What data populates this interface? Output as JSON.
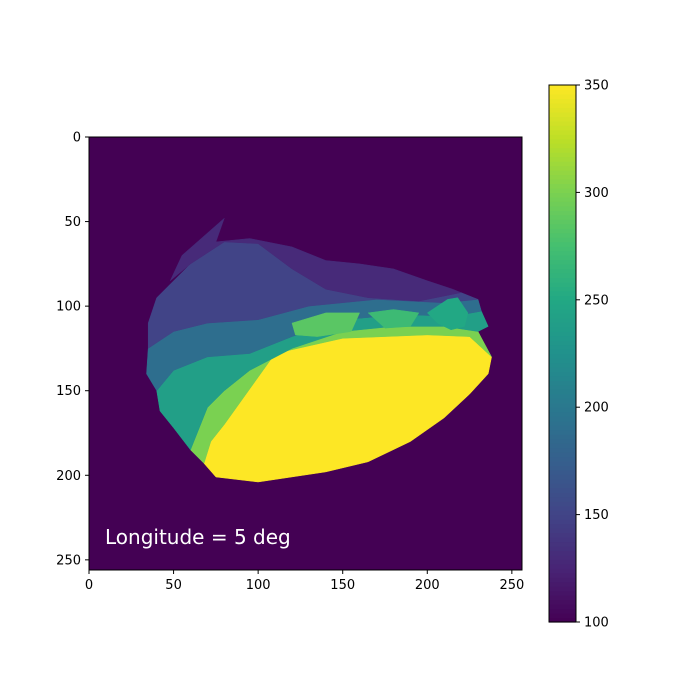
{
  "chart_data": {
    "type": "heatmap",
    "title": "",
    "xlabel": "",
    "ylabel": "",
    "xlim": [
      0,
      256
    ],
    "ylim": [
      256,
      0
    ],
    "x_ticks": [
      0,
      50,
      100,
      150,
      200,
      250
    ],
    "y_ticks": [
      0,
      50,
      100,
      150,
      200,
      250
    ],
    "background_value": 100,
    "colorbar": {
      "colormap": "viridis",
      "range": [
        100,
        350
      ],
      "ticks": [
        100,
        150,
        200,
        250,
        300,
        350
      ]
    },
    "annotation": "Longitude = 5 deg",
    "regions": [
      {
        "value": 350,
        "points": [
          [
            80,
            170
          ],
          [
            110,
            128
          ],
          [
            150,
            119
          ],
          [
            200,
            117
          ],
          [
            225,
            118
          ],
          [
            238,
            130
          ],
          [
            236,
            140
          ],
          [
            225,
            152
          ],
          [
            210,
            166
          ],
          [
            190,
            180
          ],
          [
            165,
            192
          ],
          [
            140,
            198
          ],
          [
            100,
            204
          ],
          [
            75,
            201
          ],
          [
            68,
            193
          ],
          [
            72,
            180
          ]
        ]
      },
      {
        "value": 300,
        "points": [
          [
            60,
            185
          ],
          [
            70,
            160
          ],
          [
            80,
            150
          ],
          [
            95,
            138
          ],
          [
            120,
            125
          ],
          [
            150,
            115
          ],
          [
            180,
            112
          ],
          [
            210,
            112
          ],
          [
            230,
            115
          ],
          [
            238,
            130
          ],
          [
            225,
            118
          ],
          [
            200,
            117
          ],
          [
            150,
            119
          ],
          [
            110,
            128
          ],
          [
            80,
            170
          ],
          [
            72,
            180
          ],
          [
            68,
            193
          ]
        ]
      },
      {
        "value": 240,
        "points": [
          [
            40,
            150
          ],
          [
            50,
            138
          ],
          [
            70,
            130
          ],
          [
            95,
            128
          ],
          [
            120,
            118
          ],
          [
            150,
            108
          ],
          [
            185,
            105
          ],
          [
            215,
            106
          ],
          [
            232,
            103
          ],
          [
            236,
            112
          ],
          [
            230,
            115
          ],
          [
            210,
            112
          ],
          [
            180,
            112
          ],
          [
            150,
            115
          ],
          [
            120,
            125
          ],
          [
            95,
            138
          ],
          [
            80,
            150
          ],
          [
            70,
            160
          ],
          [
            60,
            185
          ],
          [
            50,
            172
          ],
          [
            42,
            162
          ]
        ]
      },
      {
        "value": 190,
        "points": [
          [
            35,
            125
          ],
          [
            50,
            115
          ],
          [
            70,
            110
          ],
          [
            100,
            108
          ],
          [
            130,
            100
          ],
          [
            170,
            96
          ],
          [
            210,
            98
          ],
          [
            230,
            96
          ],
          [
            232,
            103
          ],
          [
            215,
            106
          ],
          [
            185,
            105
          ],
          [
            150,
            108
          ],
          [
            120,
            118
          ],
          [
            95,
            128
          ],
          [
            70,
            130
          ],
          [
            50,
            138
          ],
          [
            40,
            150
          ],
          [
            34,
            140
          ]
        ]
      },
      {
        "value": 150,
        "points": [
          [
            40,
            95
          ],
          [
            60,
            75
          ],
          [
            80,
            62
          ],
          [
            100,
            63
          ],
          [
            120,
            78
          ],
          [
            140,
            90
          ],
          [
            165,
            95
          ],
          [
            195,
            97
          ],
          [
            220,
            92
          ],
          [
            230,
            96
          ],
          [
            210,
            98
          ],
          [
            170,
            96
          ],
          [
            130,
            100
          ],
          [
            100,
            108
          ],
          [
            70,
            110
          ],
          [
            50,
            115
          ],
          [
            35,
            125
          ],
          [
            35,
            110
          ]
        ]
      },
      {
        "value": 130,
        "points": [
          [
            55,
            70
          ],
          [
            80,
            48
          ],
          [
            75,
            62
          ],
          [
            95,
            60
          ],
          [
            120,
            65
          ],
          [
            140,
            73
          ],
          [
            160,
            75
          ],
          [
            180,
            78
          ],
          [
            200,
            85
          ],
          [
            215,
            90
          ],
          [
            220,
            92
          ],
          [
            195,
            97
          ],
          [
            165,
            95
          ],
          [
            140,
            90
          ],
          [
            120,
            78
          ],
          [
            100,
            63
          ],
          [
            80,
            62
          ],
          [
            60,
            75
          ],
          [
            48,
            85
          ]
        ]
      },
      {
        "value": 250,
        "points": [
          [
            200,
            104
          ],
          [
            212,
            96
          ],
          [
            218,
            95
          ],
          [
            224,
            104
          ],
          [
            222,
            112
          ],
          [
            214,
            114
          ],
          [
            206,
            110
          ]
        ]
      },
      {
        "value": 285,
        "points": [
          [
            120,
            110
          ],
          [
            140,
            104
          ],
          [
            160,
            104
          ],
          [
            155,
            115
          ],
          [
            135,
            118
          ],
          [
            122,
            117
          ]
        ]
      },
      {
        "value": 270,
        "points": [
          [
            165,
            104
          ],
          [
            180,
            102
          ],
          [
            195,
            104
          ],
          [
            190,
            112
          ],
          [
            175,
            113
          ]
        ]
      }
    ]
  }
}
